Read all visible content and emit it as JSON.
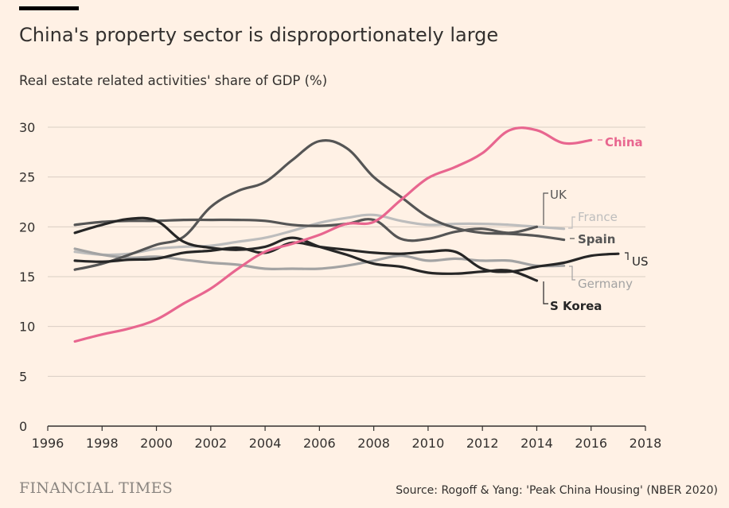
{
  "header": {
    "title": "China's property sector is disproportionately large",
    "subtitle": "Real estate related activities' share of GDP (%)"
  },
  "footer": {
    "brand": "FINANCIAL TIMES",
    "source": "Source: Rogoff & Yang: 'Peak China Housing' (NBER 2020)"
  },
  "colors": {
    "background": "#FFF1E5",
    "grid": "#D9CEC4",
    "axis": "#33302E",
    "china": "#E8668F",
    "dark": "#262626",
    "mid_dark": "#555555",
    "light_gray": "#BDBDBD",
    "mid_gray": "#A3A3A3"
  },
  "chart_data": {
    "type": "line",
    "title": "China's property sector is disproportionately large",
    "ylabel": "Real estate related activities' share of GDP (%)",
    "xlabel": "",
    "xlim": [
      1996,
      2018
    ],
    "ylim": [
      0,
      30
    ],
    "x_ticks": [
      1996,
      1998,
      2000,
      2002,
      2004,
      2006,
      2008,
      2010,
      2012,
      2014,
      2016,
      2018
    ],
    "y_ticks": [
      0,
      5,
      10,
      15,
      20,
      25,
      30
    ],
    "grid": true,
    "series": [
      {
        "name": "China",
        "label": "China",
        "color": "#E8668F",
        "x": [
          1997,
          1998,
          1999,
          2000,
          2001,
          2002,
          2003,
          2004,
          2005,
          2006,
          2007,
          2008,
          2009,
          2010,
          2011,
          2012,
          2013,
          2014,
          2015,
          2016
        ],
        "y": [
          8.5,
          9.2,
          9.8,
          10.7,
          12.3,
          13.8,
          15.8,
          17.5,
          18.3,
          19.2,
          20.3,
          20.5,
          22.7,
          24.9,
          26.0,
          27.4,
          29.7,
          29.7,
          28.4,
          28.7
        ]
      },
      {
        "name": "UK",
        "label": "UK",
        "color": "#555555",
        "x": [
          1997,
          1998,
          1999,
          2000,
          2001,
          2002,
          2003,
          2004,
          2005,
          2006,
          2007,
          2008,
          2009,
          2010,
          2011,
          2012,
          2013,
          2014
        ],
        "y": [
          20.2,
          20.5,
          20.6,
          20.6,
          20.7,
          20.7,
          20.7,
          20.6,
          20.2,
          20.1,
          20.3,
          20.7,
          18.8,
          18.8,
          19.5,
          19.8,
          19.4,
          20.0
        ]
      },
      {
        "name": "France",
        "label": "France",
        "color": "#BDBDBD",
        "x": [
          1997,
          1998,
          1999,
          2000,
          2001,
          2002,
          2003,
          2004,
          2005,
          2006,
          2007,
          2008,
          2009,
          2010,
          2011,
          2012,
          2013,
          2014,
          2015
        ],
        "y": [
          17.5,
          17.2,
          17.3,
          17.8,
          18.0,
          18.1,
          18.5,
          18.9,
          19.6,
          20.4,
          20.9,
          21.2,
          20.6,
          20.2,
          20.3,
          20.3,
          20.2,
          20.0,
          19.8
        ]
      },
      {
        "name": "Spain",
        "label": "Spain",
        "color": "#555555",
        "x": [
          1997,
          1998,
          1999,
          2000,
          2001,
          2002,
          2003,
          2004,
          2005,
          2006,
          2007,
          2008,
          2009,
          2010,
          2011,
          2012,
          2013,
          2014,
          2015
        ],
        "y": [
          15.7,
          16.3,
          17.2,
          18.2,
          19.0,
          22.0,
          23.6,
          24.5,
          26.7,
          28.6,
          27.9,
          25.0,
          23.0,
          21.0,
          19.9,
          19.4,
          19.3,
          19.1,
          18.7
        ]
      },
      {
        "name": "US",
        "label": "US",
        "color": "#262626",
        "x": [
          1997,
          1998,
          1999,
          2000,
          2001,
          2002,
          2003,
          2004,
          2005,
          2006,
          2007,
          2008,
          2009,
          2010,
          2011,
          2012,
          2013,
          2014,
          2015,
          2016,
          2017
        ],
        "y": [
          16.6,
          16.5,
          16.7,
          16.8,
          17.4,
          17.6,
          17.9,
          17.4,
          18.4,
          18.0,
          17.7,
          17.4,
          17.3,
          17.5,
          17.5,
          15.8,
          15.5,
          16.0,
          16.4,
          17.1,
          17.3
        ]
      },
      {
        "name": "Germany",
        "label": "Germany",
        "color": "#A3A3A3",
        "x": [
          1997,
          1998,
          1999,
          2000,
          2001,
          2002,
          2003,
          2004,
          2005,
          2006,
          2007,
          2008,
          2009,
          2010,
          2011,
          2012,
          2013,
          2014,
          2015
        ],
        "y": [
          17.8,
          17.2,
          16.9,
          17.0,
          16.7,
          16.4,
          16.2,
          15.8,
          15.8,
          15.8,
          16.1,
          16.6,
          17.1,
          16.6,
          16.8,
          16.6,
          16.6,
          16.1,
          16.1
        ]
      },
      {
        "name": "S Korea",
        "label": "S Korea",
        "color": "#262626",
        "x": [
          1997,
          1998,
          1999,
          2000,
          2001,
          2002,
          2003,
          2004,
          2005,
          2006,
          2007,
          2008,
          2009,
          2010,
          2011,
          2012,
          2013,
          2014
        ],
        "y": [
          19.4,
          20.2,
          20.8,
          20.6,
          18.5,
          17.9,
          17.7,
          18.0,
          18.9,
          18.0,
          17.2,
          16.3,
          16.0,
          15.4,
          15.3,
          15.5,
          15.6,
          14.6
        ]
      }
    ]
  }
}
